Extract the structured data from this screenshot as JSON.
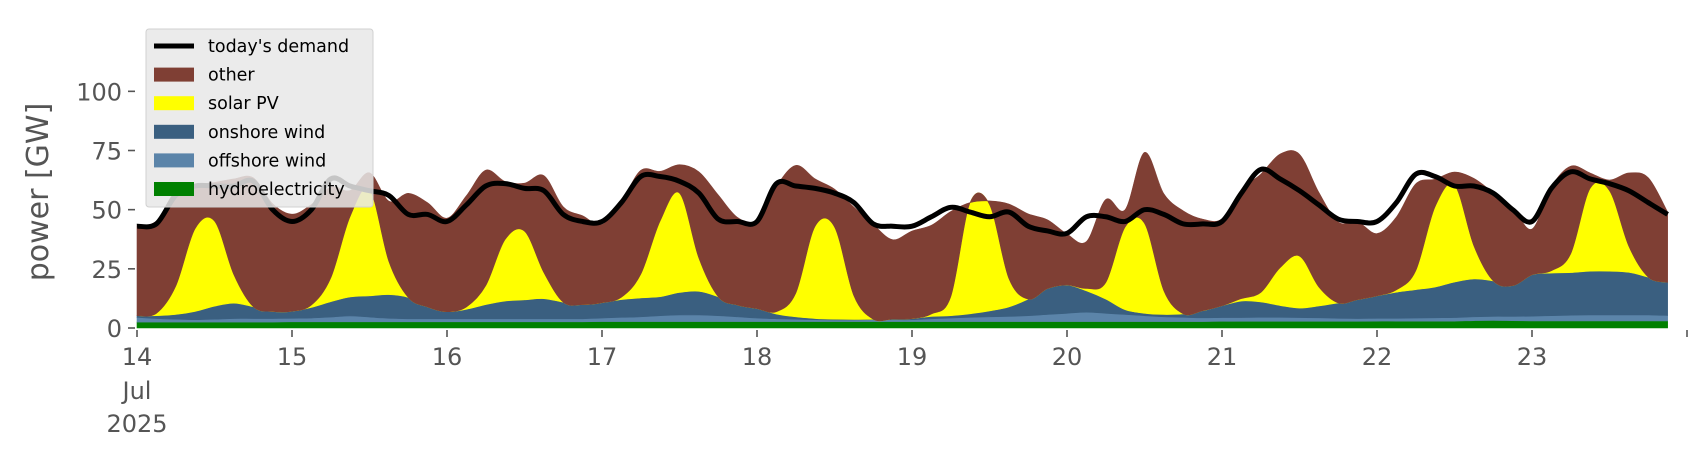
{
  "chart_data": {
    "type": "area",
    "ylabel": "power [GW]",
    "ylim": [
      0,
      120
    ],
    "xlim": [
      "2025-07-14",
      "2025-07-24"
    ],
    "grid": false,
    "legend_position": "top-left",
    "y_ticks": [
      0,
      25,
      50,
      75,
      100
    ],
    "y_tick_labels": [
      "0",
      "25",
      "50",
      "75",
      "100"
    ],
    "x_ticks": [
      "2025-07-14",
      "2025-07-15",
      "2025-07-16",
      "2025-07-17",
      "2025-07-18",
      "2025-07-19",
      "2025-07-20",
      "2025-07-21",
      "2025-07-22",
      "2025-07-23"
    ],
    "x_tick_labels": [
      "14",
      "15",
      "16",
      "17",
      "18",
      "19",
      "20",
      "21",
      "22",
      "23"
    ],
    "x_first_tick_extra_lines": [
      "Jul",
      "2025"
    ],
    "sample_step_hours": 3,
    "x_start": "2025-07-14 00:00",
    "series": [
      {
        "name": "hydroelectricity",
        "color": "#008000",
        "values": [
          2.5,
          2.5,
          2.5,
          2.5,
          2.5,
          2.5,
          2.5,
          2.5,
          2.6,
          2.6,
          2.6,
          2.6,
          2.6,
          2.6,
          2.6,
          2.6,
          2.6,
          2.6,
          2.6,
          2.6,
          2.6,
          2.6,
          2.6,
          2.6,
          2.7,
          2.7,
          2.7,
          2.7,
          2.7,
          2.7,
          2.7,
          2.7,
          2.7,
          2.7,
          2.7,
          2.7,
          2.7,
          2.7,
          2.7,
          2.7,
          2.7,
          2.7,
          2.7,
          2.7,
          2.7,
          2.7,
          2.7,
          2.7,
          2.7,
          2.7,
          2.7,
          2.7,
          2.7,
          2.7,
          2.7,
          2.7,
          2.8,
          2.8,
          2.8,
          2.8,
          2.8,
          2.8,
          2.8,
          2.8,
          2.9,
          2.9,
          2.9,
          2.9,
          2.9,
          3.1,
          3.2,
          3.1,
          3.0,
          3.0,
          3.0,
          3.0,
          3.0,
          3.0,
          3.0,
          3.0
        ]
      },
      {
        "name": "offshore wind",
        "color": "#5b84a9",
        "values": [
          2.0,
          1.5,
          1.2,
          1.0,
          1.2,
          1.5,
          1.5,
          1.5,
          1.5,
          1.6,
          2.0,
          2.5,
          2.0,
          1.5,
          1.3,
          1.3,
          1.3,
          1.3,
          1.3,
          1.3,
          1.3,
          1.3,
          1.3,
          1.3,
          1.5,
          1.8,
          2.0,
          2.5,
          2.8,
          2.8,
          2.5,
          2.0,
          1.5,
          1.2,
          1.0,
          0.8,
          0.7,
          0.7,
          0.8,
          0.8,
          0.8,
          1.2,
          1.5,
          1.8,
          2.0,
          2.2,
          2.5,
          3.0,
          3.5,
          4.0,
          3.5,
          3.0,
          2.5,
          2.0,
          1.8,
          1.6,
          1.6,
          1.6,
          1.7,
          1.7,
          1.6,
          1.5,
          1.3,
          1.2,
          1.2,
          1.2,
          1.3,
          1.4,
          1.5,
          1.6,
          1.7,
          1.8,
          2.0,
          2.2,
          2.4,
          2.5,
          2.5,
          2.5,
          2.5,
          2.3
        ]
      },
      {
        "name": "onshore wind",
        "color": "#3a5f80",
        "values": [
          0.7,
          1.2,
          2.0,
          3.5,
          5.5,
          6.5,
          5.0,
          3.0,
          3.0,
          4.5,
          6.5,
          8.0,
          9.0,
          10.0,
          9.0,
          5.0,
          3.0,
          4.0,
          6.0,
          7.5,
          8.0,
          8.5,
          7.0,
          6.0,
          6.5,
          7.5,
          8.0,
          8.0,
          9.5,
          10.0,
          8.0,
          5.0,
          4.0,
          2.0,
          1.0,
          0.5,
          0.3,
          0.2,
          0.2,
          0.3,
          0.5,
          1.0,
          1.0,
          1.5,
          2.5,
          4.0,
          7.0,
          11.0,
          12.0,
          9.0,
          6.0,
          2.0,
          1.0,
          1.0,
          1.5,
          3.0,
          5.0,
          7.0,
          6.5,
          5.0,
          4.0,
          5.0,
          6.5,
          8.0,
          9.5,
          11.0,
          12.0,
          13.0,
          15.0,
          16.0,
          15.0,
          13.0,
          17.5,
          18.0,
          18.0,
          18.5,
          18.5,
          18.0,
          16.0,
          14.0
        ]
      },
      {
        "name": "solar PV",
        "color": "#ffff00",
        "values": [
          0,
          1,
          12,
          35,
          36,
          12,
          0,
          0,
          0,
          1,
          10,
          34,
          45,
          14,
          0,
          0,
          0,
          1,
          8,
          26,
          29,
          11,
          0,
          0,
          0,
          1,
          10,
          32,
          42,
          14,
          0,
          0,
          0,
          1,
          10,
          39,
          39,
          10,
          0,
          0,
          0,
          1,
          8,
          47,
          45,
          12,
          0,
          0,
          0,
          1,
          7,
          35,
          38,
          10,
          0,
          0,
          0,
          1,
          4,
          16,
          22,
          8,
          0,
          0,
          0,
          1,
          8,
          34,
          41,
          14,
          0,
          0,
          0,
          1,
          8,
          35,
          34,
          11,
          0,
          0
        ]
      },
      {
        "name": "other",
        "color": "#7f3f34",
        "values": [
          38,
          39,
          40.5,
          18.5,
          16.3,
          40.5,
          54.5,
          45.5,
          41,
          42.5,
          38.5,
          11,
          7,
          25.5,
          44,
          44,
          39.5,
          47,
          48.8,
          24.5,
          20.3,
          41,
          40.3,
          37.5,
          33,
          40.5,
          43.9,
          21,
          12,
          36.5,
          43,
          37,
          37.1,
          53,
          54,
          20,
          16,
          37.5,
          40,
          33.5,
          37,
          37.5,
          36,
          0,
          1.5,
          31.5,
          36,
          29,
          21.5,
          19.8,
          35.1,
          7.3,
          30,
          41,
          43.5,
          38.7,
          36.7,
          46,
          50,
          48,
          43,
          40,
          34.2,
          32.8,
          26.3,
          30.8,
          36.7,
          11.6,
          5.5,
          28.5,
          37.3,
          33.1,
          19.3,
          35.5,
          37,
          6.5,
          4.5,
          31,
          42,
          29.7
        ]
      },
      {
        "name": "today's demand",
        "color": "#000000",
        "values": [
          43,
          44,
          56,
          60,
          60,
          60,
          62,
          50,
          45,
          50,
          63,
          60,
          58,
          56,
          48,
          48,
          45,
          52,
          60,
          61,
          59,
          58,
          48,
          45,
          45,
          53,
          64,
          64,
          62,
          57,
          46,
          45,
          45,
          61,
          60,
          59,
          57,
          53,
          44,
          43,
          43,
          47,
          51,
          49,
          47,
          49,
          43,
          41,
          40,
          47,
          47,
          45,
          50,
          48,
          44,
          44,
          45,
          57,
          67,
          63,
          58,
          52,
          46,
          45,
          45,
          53,
          65,
          64,
          60,
          60,
          57,
          50,
          45,
          59,
          66,
          63,
          61,
          58,
          53,
          48
        ]
      }
    ]
  }
}
